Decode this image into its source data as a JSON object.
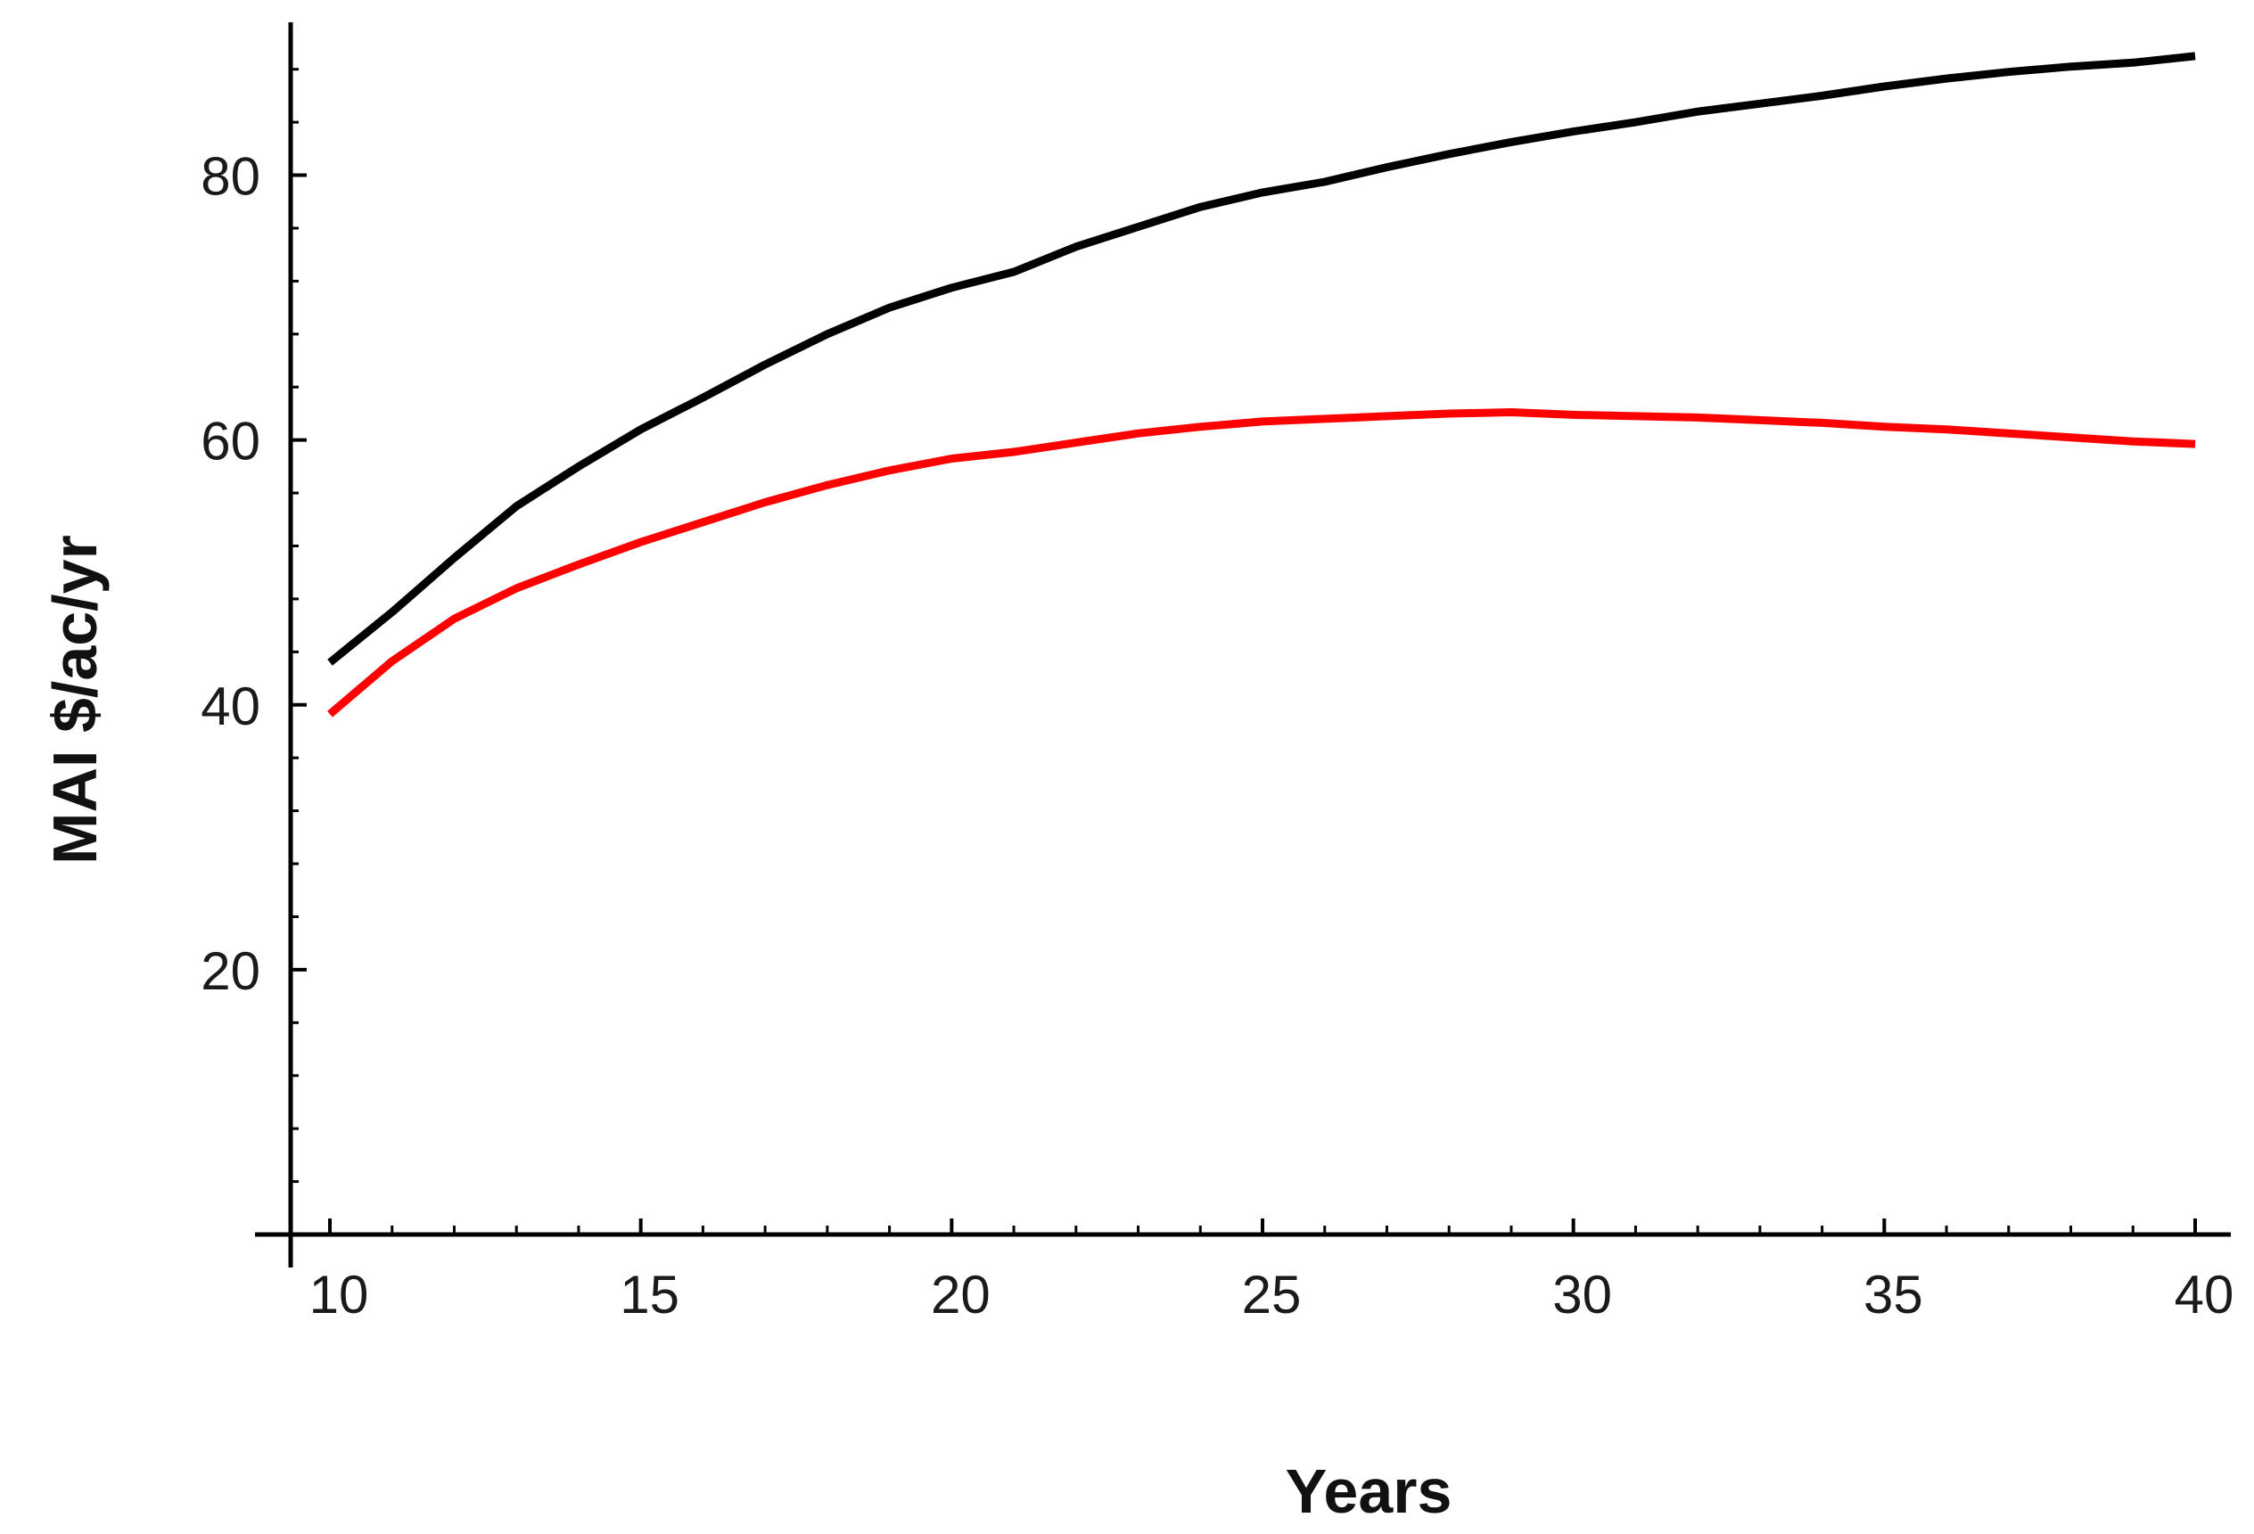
{
  "chart_data": {
    "type": "line",
    "title": "",
    "xlabel": "Years",
    "ylabel": "MAI $/ac/yr",
    "xlim": [
      10,
      40
    ],
    "ylim": [
      0,
      90
    ],
    "x_ticks": [
      10,
      15,
      20,
      25,
      30,
      35,
      40
    ],
    "y_ticks": [
      20,
      40,
      60,
      80
    ],
    "x_minor_step": 1,
    "y_minor_step": 4,
    "grid": false,
    "legend": "none",
    "x": [
      10,
      11,
      12,
      13,
      14,
      15,
      16,
      17,
      18,
      19,
      20,
      21,
      22,
      23,
      24,
      25,
      26,
      27,
      28,
      29,
      30,
      31,
      32,
      33,
      34,
      35,
      36,
      37,
      38,
      39,
      40
    ],
    "series": [
      {
        "color": "#000000",
        "values": [
          43.2,
          47.0,
          51.1,
          55.0,
          58.0,
          60.8,
          63.2,
          65.7,
          68.0,
          70.0,
          71.5,
          72.7,
          74.6,
          76.1,
          77.6,
          78.7,
          79.5,
          80.6,
          81.6,
          82.5,
          83.3,
          84.0,
          84.8,
          85.4,
          86.0,
          86.7,
          87.3,
          87.8,
          88.2,
          88.5,
          89.0
        ]
      },
      {
        "color": "#ff0000",
        "values": [
          39.3,
          43.3,
          46.5,
          48.8,
          50.6,
          52.3,
          53.8,
          55.3,
          56.6,
          57.7,
          58.6,
          59.1,
          59.8,
          60.5,
          61.0,
          61.4,
          61.6,
          61.8,
          62.0,
          62.1,
          61.9,
          61.8,
          61.7,
          61.5,
          61.3,
          61.0,
          60.8,
          60.5,
          60.2,
          59.9,
          59.7
        ]
      }
    ]
  }
}
